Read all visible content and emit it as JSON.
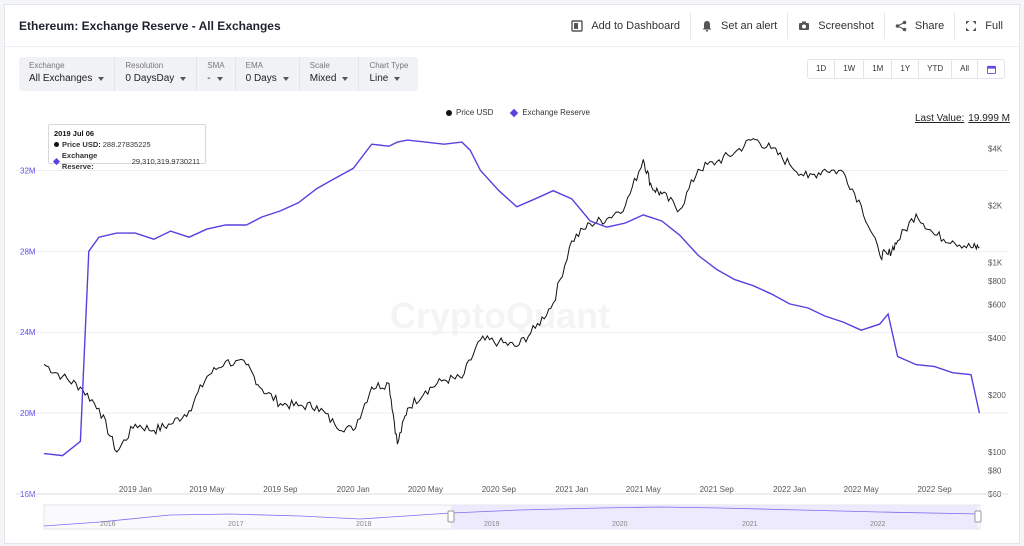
{
  "header": {
    "title": "Ethereum: Exchange Reserve - All Exchanges",
    "actions": [
      {
        "label": "Add to Dashboard",
        "icon": "dashboard-icon"
      },
      {
        "label": "Set an alert",
        "icon": "bell-icon"
      },
      {
        "label": "Screenshot",
        "icon": "camera-icon"
      },
      {
        "label": "Share",
        "icon": "share-icon"
      },
      {
        "label": "Full",
        "icon": "fullscreen-icon"
      }
    ]
  },
  "controls": [
    {
      "label": "Exchange",
      "value": "All Exchanges"
    },
    {
      "label": "Resolution",
      "value": "0 DaysDay"
    },
    {
      "label": "SMA",
      "value": "-"
    },
    {
      "label": "EMA",
      "value": "0 Days"
    },
    {
      "label": "Scale",
      "value": "Mixed"
    },
    {
      "label": "Chart Type",
      "value": "Line"
    }
  ],
  "ranges": [
    "1D",
    "1W",
    "1M",
    "1Y",
    "YTD",
    "All"
  ],
  "legend": {
    "price": "Price USD",
    "reserve": "Exchange Reserve"
  },
  "last_value": {
    "label": "Last Value:",
    "value": "19.999 M"
  },
  "tooltip": {
    "date": "2019 Jul 06",
    "price_label": "Price USD:",
    "price_value": "288.27835225",
    "reserve_label": "Exchange Reserve:",
    "reserve_value": "29,310,319.9730211"
  },
  "watermark": "CryptoQuant",
  "colors": {
    "price": "#111111",
    "reserve": "#5b3fe0",
    "accent": "#5b4ee8"
  },
  "chart_data": {
    "type": "line",
    "title": "Ethereum: Exchange Reserve - All Exchanges",
    "x_tick_labels": [
      "2019 Jan",
      "2019 May",
      "2019 Sep",
      "2020 Jan",
      "2020 May",
      "2020 Sep",
      "2021 Jan",
      "2021 May",
      "2021 Sep",
      "2022 Jan",
      "2022 May",
      "2022 Sep"
    ],
    "left_axis": {
      "ticks": [
        "16M",
        "20M",
        "24M",
        "28M",
        "32M"
      ],
      "range": [
        16000000,
        34000000
      ],
      "scale": "linear"
    },
    "right_axis": {
      "ticks": [
        "$60",
        "$80",
        "$100",
        "$200",
        "$400",
        "$600",
        "$800",
        "$1K",
        "$2K",
        "$4K"
      ],
      "range": [
        60,
        5000
      ],
      "scale": "log"
    },
    "series": [
      {
        "name": "Exchange Reserve",
        "axis": "left",
        "x": [
          "2018-08-01",
          "2018-09-01",
          "2018-10-01",
          "2018-10-15",
          "2018-11-01",
          "2018-12-01",
          "2019-01-01",
          "2019-02-01",
          "2019-03-01",
          "2019-04-01",
          "2019-05-01",
          "2019-06-01",
          "2019-07-06",
          "2019-08-01",
          "2019-09-01",
          "2019-10-01",
          "2019-11-01",
          "2019-12-01",
          "2020-01-01",
          "2020-02-01",
          "2020-03-01",
          "2020-03-15",
          "2020-04-01",
          "2020-05-01",
          "2020-06-01",
          "2020-07-01",
          "2020-07-15",
          "2020-08-01",
          "2020-09-01",
          "2020-10-01",
          "2020-11-01",
          "2020-12-01",
          "2021-01-01",
          "2021-02-01",
          "2021-03-01",
          "2021-04-01",
          "2021-05-01",
          "2021-06-01",
          "2021-07-01",
          "2021-08-01",
          "2021-09-01",
          "2021-10-01",
          "2021-11-01",
          "2021-12-01",
          "2022-01-01",
          "2022-02-01",
          "2022-03-01",
          "2022-04-01",
          "2022-05-01",
          "2022-06-01",
          "2022-06-15",
          "2022-07-01",
          "2022-08-01",
          "2022-09-01",
          "2022-10-01",
          "2022-11-01",
          "2022-11-15"
        ],
        "values": [
          18000000.0,
          17900000.0,
          18600000.0,
          28000000.0,
          28700000.0,
          28900000.0,
          28900000.0,
          28600000.0,
          29000000.0,
          28700000.0,
          29100000.0,
          29300000.0,
          29300000.0,
          29700000.0,
          30000000.0,
          30400000.0,
          31100000.0,
          31600000.0,
          32100000.0,
          33300000.0,
          33200000.0,
          33400000.0,
          33500000.0,
          33400000.0,
          33300000.0,
          33400000.0,
          33000000.0,
          32000000.0,
          31000000.0,
          30200000.0,
          30600000.0,
          31000000.0,
          30600000.0,
          29500000.0,
          29200000.0,
          29400000.0,
          29800000.0,
          29500000.0,
          28800000.0,
          27800000.0,
          27100000.0,
          26600000.0,
          26300000.0,
          25900000.0,
          25400000.0,
          25200000.0,
          24800000.0,
          24500000.0,
          24100000.0,
          24400000.0,
          24900000.0,
          22800000.0,
          22400000.0,
          22300000.0,
          22000000.0,
          21900000.0,
          19999000.0
        ]
      },
      {
        "name": "Price USD",
        "axis": "right",
        "x": [
          "2018-08-01",
          "2018-09-01",
          "2018-10-01",
          "2018-11-01",
          "2018-12-01",
          "2019-01-01",
          "2019-02-01",
          "2019-03-01",
          "2019-04-01",
          "2019-05-01",
          "2019-06-01",
          "2019-07-06",
          "2019-08-01",
          "2019-09-01",
          "2019-10-01",
          "2019-11-01",
          "2019-12-01",
          "2020-01-01",
          "2020-02-01",
          "2020-03-01",
          "2020-03-15",
          "2020-04-01",
          "2020-05-01",
          "2020-06-01",
          "2020-07-01",
          "2020-08-01",
          "2020-09-01",
          "2020-10-01",
          "2020-11-01",
          "2020-12-01",
          "2021-01-01",
          "2021-02-01",
          "2021-03-01",
          "2021-04-01",
          "2021-05-01",
          "2021-05-15",
          "2021-06-01",
          "2021-07-01",
          "2021-08-01",
          "2021-09-01",
          "2021-10-01",
          "2021-11-01",
          "2021-12-01",
          "2022-01-01",
          "2022-02-01",
          "2022-03-01",
          "2022-04-01",
          "2022-05-01",
          "2022-06-01",
          "2022-06-15",
          "2022-07-01",
          "2022-08-01",
          "2022-09-01",
          "2022-10-01",
          "2022-11-01",
          "2022-11-15"
        ],
        "values": [
          290,
          250,
          220,
          170,
          100,
          140,
          130,
          140,
          165,
          250,
          300,
          288,
          215,
          180,
          175,
          175,
          140,
          130,
          220,
          230,
          110,
          170,
          210,
          240,
          245,
          390,
          380,
          360,
          450,
          610,
          1300,
          1600,
          1700,
          2000,
          3500,
          2500,
          2300,
          1900,
          3100,
          3400,
          3800,
          4500,
          4000,
          3300,
          2800,
          3100,
          3000,
          2000,
          1100,
          1100,
          1300,
          1800,
          1400,
          1300,
          1200,
          1200
        ]
      }
    ],
    "grid": true,
    "legend_position": "top-center"
  },
  "navigator": {
    "labels": [
      "2016",
      "2017",
      "2018",
      "2019",
      "2020",
      "2021",
      "2022"
    ]
  }
}
